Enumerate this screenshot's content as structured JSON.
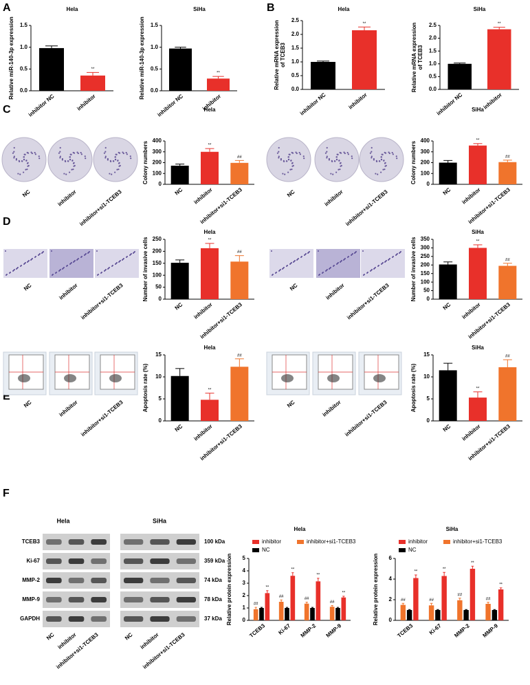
{
  "figure": {
    "panels": [
      "A",
      "B",
      "C",
      "D",
      "E",
      "F"
    ],
    "image_labels": [
      "NC",
      "inhibitor",
      "inhibitor+si1-TCEB3"
    ],
    "blot": {
      "cell_lines": [
        "Hela",
        "SiHa"
      ],
      "proteins": [
        "TCEB3",
        "Ki-67",
        "MMP-2",
        "MMP-9",
        "GAPDH"
      ],
      "sizes": [
        "100 kDa",
        "359 kDa",
        "74 kDa",
        "78 kDa",
        "37 kDa"
      ],
      "lanes": [
        "NC",
        "inhibitor",
        "inhibitor+si1-TCEB3"
      ]
    }
  },
  "chart_data": [
    {
      "type": "bar",
      "title": "Hela",
      "y_label": [
        "Relative miR-140-3p expression"
      ],
      "categories": [
        "inhibitor NC",
        "inhibitor"
      ],
      "values": [
        0.98,
        0.35
      ],
      "errors": [
        0.05,
        0.07
      ],
      "colors": [
        "#000000",
        "#e8302a"
      ],
      "annotations": [
        null,
        "**"
      ],
      "ylim": [
        0,
        1.5
      ],
      "yticks": [
        {
          "value": 0,
          "label": "0.0"
        },
        0.5,
        {
          "value": 1,
          "label": "1.0"
        },
        1.5
      ]
    },
    {
      "type": "bar",
      "title": "SiHa",
      "y_label": [
        "Relative miR-140-3p expression"
      ],
      "categories": [
        "inhibitor NC",
        "inhibitor"
      ],
      "values": [
        0.97,
        0.28
      ],
      "errors": [
        0.03,
        0.05
      ],
      "colors": [
        "#000000",
        "#e8302a"
      ],
      "annotations": [
        null,
        "**"
      ],
      "ylim": [
        0,
        1.5
      ],
      "yticks": [
        {
          "value": 0,
          "label": "0.0"
        },
        0.5,
        {
          "value": 1,
          "label": "1.0"
        },
        1.5
      ]
    },
    {
      "type": "bar",
      "title": "Hela",
      "y_label": [
        "Relative mRNA expression",
        "of TCEB3"
      ],
      "categories": [
        "inhibitor NC",
        "inhibitor"
      ],
      "values": [
        1.0,
        2.15
      ],
      "errors": [
        0.03,
        0.12
      ],
      "colors": [
        "#000000",
        "#e8302a"
      ],
      "annotations": [
        null,
        "**"
      ],
      "ylim": [
        0,
        2.5
      ],
      "yticks": [
        {
          "value": 0,
          "label": "0.0"
        },
        0.5,
        {
          "value": 1,
          "label": "1.0"
        },
        1.5,
        {
          "value": 2,
          "label": "2.0"
        },
        2.5
      ]
    },
    {
      "type": "bar",
      "title": "SiHa",
      "y_label": [
        "Relative mRNA expression",
        "of TCEB3"
      ],
      "categories": [
        "inhibitor NC",
        "inhibitor"
      ],
      "values": [
        1.0,
        2.35
      ],
      "errors": [
        0.03,
        0.08
      ],
      "colors": [
        "#000000",
        "#e8302a"
      ],
      "annotations": [
        null,
        "**"
      ],
      "ylim": [
        0,
        2.5
      ],
      "yticks": [
        {
          "value": 0,
          "label": "0.0"
        },
        0.5,
        {
          "value": 1,
          "label": "1.0"
        },
        1.5,
        {
          "value": 2,
          "label": "2.0"
        },
        2.5
      ]
    },
    {
      "type": "bar",
      "title": "Hela",
      "y_label": [
        "Colony numbers"
      ],
      "categories": [
        "NC",
        "inhibitor",
        "inhibitor+si1-TCEB3"
      ],
      "values": [
        172,
        300,
        198
      ],
      "errors": [
        15,
        30,
        22
      ],
      "colors": [
        "#000000",
        "#e8302a",
        "#f0742c"
      ],
      "annotations": [
        null,
        "**",
        "##"
      ],
      "ylim": [
        0,
        400
      ],
      "yticks": [
        0,
        100,
        200,
        300,
        400
      ]
    },
    {
      "type": "bar",
      "title": "SiHa",
      "y_label": [
        "Colony numbers"
      ],
      "categories": [
        "NC",
        "inhibitor",
        "inhibitor+si1-TCEB3"
      ],
      "values": [
        200,
        358,
        205
      ],
      "errors": [
        20,
        18,
        18
      ],
      "colors": [
        "#000000",
        "#e8302a",
        "#f0742c"
      ],
      "annotations": [
        null,
        "**",
        "##"
      ],
      "ylim": [
        0,
        400
      ],
      "yticks": [
        0,
        100,
        200,
        300,
        400
      ]
    },
    {
      "type": "bar",
      "title": "Hela",
      "y_label": [
        "Number of invasive cells"
      ],
      "categories": [
        "NC",
        "inhibitor",
        "inhibitor+si1-TCEB3"
      ],
      "values": [
        152,
        213,
        157
      ],
      "errors": [
        12,
        20,
        25
      ],
      "colors": [
        "#000000",
        "#e8302a",
        "#f0742c"
      ],
      "annotations": [
        null,
        "**",
        "##"
      ],
      "ylim": [
        0,
        250
      ],
      "yticks": [
        0,
        50,
        100,
        150,
        200,
        250
      ]
    },
    {
      "type": "bar",
      "title": "SiHa",
      "y_label": [
        "Number of invasive cells"
      ],
      "categories": [
        "NC",
        "inhibitor",
        "inhibitor+si1-TCEB3"
      ],
      "values": [
        203,
        300,
        195
      ],
      "errors": [
        15,
        18,
        15
      ],
      "colors": [
        "#000000",
        "#e8302a",
        "#f0742c"
      ],
      "annotations": [
        null,
        "**",
        "##"
      ],
      "ylim": [
        0,
        350
      ],
      "yticks": [
        0,
        50,
        100,
        150,
        200,
        250,
        300,
        350
      ]
    },
    {
      "type": "bar",
      "title": "Hela",
      "y_label": [
        "Apoptosis rate (%)"
      ],
      "categories": [
        "NC",
        "inhibitor",
        "inhibitor+si1-TCEB3"
      ],
      "values": [
        10.2,
        4.8,
        12.3
      ],
      "errors": [
        1.7,
        1.5,
        1.8
      ],
      "colors": [
        "#000000",
        "#e8302a",
        "#f0742c"
      ],
      "annotations": [
        null,
        "**",
        "##"
      ],
      "ylim": [
        0,
        15
      ],
      "yticks": [
        0,
        5,
        10,
        15
      ]
    },
    {
      "type": "bar",
      "title": "SiHa",
      "y_label": [
        "Apoptosis rate (%)"
      ],
      "categories": [
        "NC",
        "inhibitor",
        "inhibitor+si1-TCEB3"
      ],
      "values": [
        11.5,
        5.3,
        12.2
      ],
      "errors": [
        1.6,
        1.3,
        1.7
      ],
      "colors": [
        "#000000",
        "#e8302a",
        "#f0742c"
      ],
      "annotations": [
        null,
        "**",
        "##"
      ],
      "ylim": [
        0,
        15
      ],
      "yticks": [
        0,
        5,
        10,
        15
      ]
    },
    {
      "type": "grouped_bar",
      "title": "Hela",
      "y_label": [
        "Relative protein expression"
      ],
      "categories": [
        "TCEB3",
        "Ki-67",
        "MMP-2",
        "MMP-9"
      ],
      "series": [
        {
          "name": "inhibitor",
          "color": "#e8302a",
          "values": [
            2.2,
            3.6,
            3.15,
            1.85
          ],
          "errors": [
            0.2,
            0.25,
            0.25,
            0.1
          ],
          "annotations": [
            "**",
            "**",
            "**",
            "**"
          ]
        },
        {
          "name": "inhibitor+si1-TCEB3",
          "color": "#f0742c",
          "values": [
            0.9,
            1.5,
            1.35,
            1.1
          ],
          "errors": [
            0.15,
            0.15,
            0.12,
            0.1
          ],
          "annotations": [
            "##",
            "##",
            "##",
            "##"
          ]
        },
        {
          "name": "NC",
          "color": "#000000",
          "values": [
            1,
            1,
            1,
            1
          ],
          "errors": [
            0.05,
            0.05,
            0.05,
            0.05
          ]
        }
      ],
      "ylim": [
        0,
        5
      ],
      "yticks": [
        0,
        1,
        2,
        3,
        4,
        5
      ]
    },
    {
      "type": "grouped_bar",
      "title": "SiHa",
      "y_label": [
        "Relative protein expression"
      ],
      "categories": [
        "TCEB3",
        "Ki-67",
        "MMP-2",
        "MMP-9"
      ],
      "series": [
        {
          "name": "inhibitor",
          "color": "#e8302a",
          "values": [
            4.1,
            4.3,
            5.0,
            3.0
          ],
          "errors": [
            0.3,
            0.35,
            0.25,
            0.15
          ],
          "annotations": [
            "**",
            "**",
            "**",
            "**"
          ]
        },
        {
          "name": "inhibitor+si1-TCEB3",
          "color": "#f0742c",
          "values": [
            1.5,
            1.45,
            1.95,
            1.6
          ],
          "errors": [
            0.15,
            0.2,
            0.2,
            0.15
          ],
          "annotations": [
            "##",
            "##",
            "##",
            "##"
          ]
        },
        {
          "name": "NC",
          "color": "#000000",
          "values": [
            1,
            1,
            1,
            1
          ],
          "errors": [
            0.05,
            0.05,
            0.05,
            0.05
          ]
        }
      ],
      "ylim": [
        0,
        6
      ],
      "yticks": [
        0,
        2,
        4,
        6
      ]
    }
  ]
}
